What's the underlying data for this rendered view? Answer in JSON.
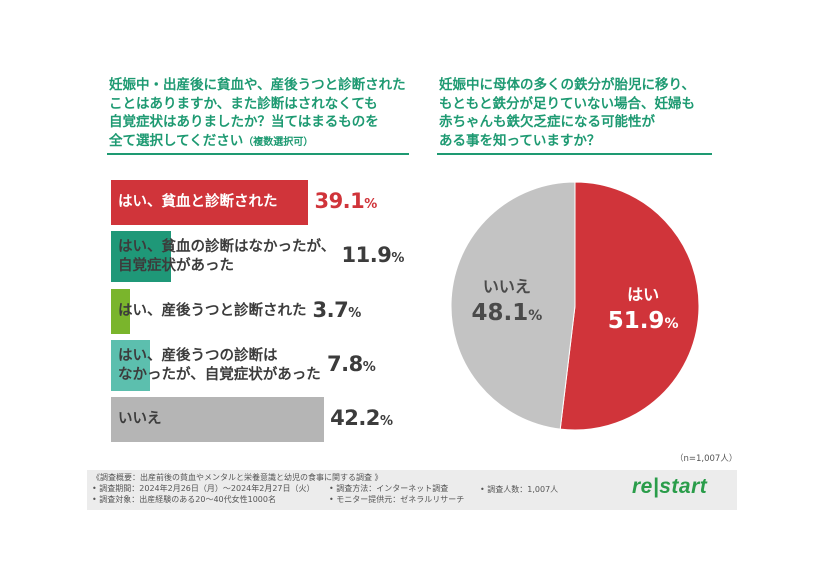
{
  "left_question": {
    "line1": "妊娠中・出産後に貧血や、産後うつと診断された",
    "line2": "ことはありますか、また診断はされなくても",
    "line3": "自覚症状はありましたか？当てはまるものを",
    "line4": "全て選択してください",
    "note": "（複数選択可）"
  },
  "right_question": {
    "line1": "妊娠中に母体の多くの鉄分が胎児に移り、",
    "line2": "もともと鉄分が足りていない場合、妊婦も",
    "line3": "赤ちゃんも鉄欠乏症になる可能性が",
    "line4": "ある事を知っていますか？"
  },
  "colors": {
    "accent": "#1e9a72",
    "red": "#d0343a",
    "teal": "#1f9878",
    "lime": "#7ab52c",
    "lightteal": "#5cbfae",
    "gray": "#b5b5b5",
    "pie_gray": "#c3c3c3"
  },
  "chart_data": [
    {
      "type": "bar",
      "orientation": "horizontal",
      "categories": [
        "はい、貧血と診断された",
        "はい、貧血の診断はなかったが、自覚症状があった",
        "はい、産後うつと診断された",
        "はい、産後うつの診断はなかったが、自覚症状があった",
        "いいえ"
      ],
      "label_lines": [
        [
          "はい、貧血と診断された"
        ],
        [
          "はい、貧血の診断はなかったが、",
          "自覚症状があった"
        ],
        [
          "はい、産後うつと診断された"
        ],
        [
          "はい、産後うつの診断は",
          "なかったが、自覚症状があった"
        ],
        [
          "いいえ"
        ]
      ],
      "values": [
        39.1,
        11.9,
        3.7,
        7.8,
        42.2
      ],
      "value_labels": [
        "39.1",
        "11.9",
        "3.7",
        "7.8",
        "42.2"
      ],
      "unit": "%",
      "colors": [
        "#d0343a",
        "#1f9878",
        "#7ab52c",
        "#5cbfae",
        "#b5b5b5"
      ]
    },
    {
      "type": "pie",
      "categories": [
        "はい",
        "いいえ"
      ],
      "values": [
        51.9,
        48.1
      ],
      "value_labels": [
        "51.9",
        "48.1"
      ],
      "unit": "%",
      "colors": [
        "#d0343a",
        "#c3c3c3"
      ]
    }
  ],
  "n_note": "（n=1,007人）",
  "footer": {
    "title": "《調査概要：出産前後の貧血やメンタルと栄養意識と幼児の食事に関する調査 》",
    "period": "• 調査期間：2024年2月26日（月）～2024年2月27日（火）",
    "target": "• 調査対象：出産経験のある20～40代女性1000名",
    "method": "• 調査方法：インターネット調査",
    "provider": "• モニター提供元：ゼネラルリサーチ",
    "count": "• 調査人数：1,007人"
  },
  "logo": {
    "left": "re",
    "sep": "|",
    "right": "start"
  }
}
